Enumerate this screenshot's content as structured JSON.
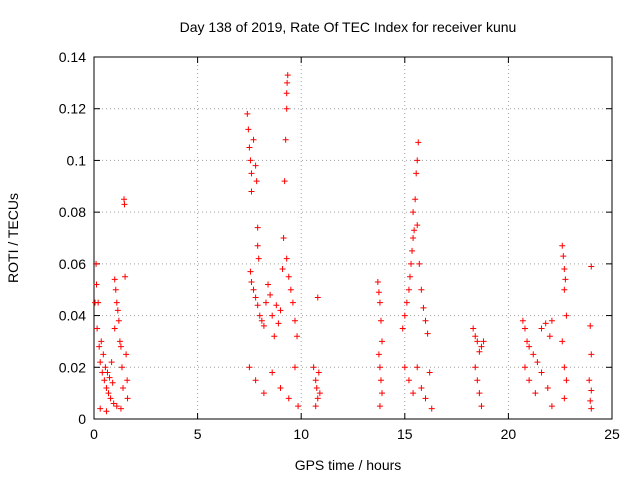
{
  "chart_data": {
    "type": "scatter",
    "title": "Day 138 of 2019, Rate Of TEC Index for receiver kunu",
    "xlabel": "GPS time / hours",
    "ylabel": "ROTI / TECUs",
    "xlim": [
      0,
      25
    ],
    "ylim": [
      0,
      0.14
    ],
    "xticks": [
      0,
      5,
      10,
      15,
      20,
      25
    ],
    "xtick_labels": [
      "0",
      "5",
      "10",
      "15",
      "20",
      "25"
    ],
    "yticks": [
      0,
      0.02,
      0.04,
      0.06,
      0.08,
      0.1,
      0.12,
      0.14
    ],
    "ytick_labels": [
      "0",
      "0.02",
      "0.04",
      "0.06",
      "0.08",
      "0.1",
      "0.12",
      "0.14"
    ],
    "grid": true,
    "marker": "plus",
    "color": "#ff0000",
    "series": [
      {
        "points": [
          [
            0.05,
            0.045
          ],
          [
            0.1,
            0.06
          ],
          [
            0.12,
            0.052
          ],
          [
            0.15,
            0.035
          ],
          [
            0.2,
            0.045
          ],
          [
            0.25,
            0.028
          ],
          [
            0.3,
            0.022
          ],
          [
            0.35,
            0.03
          ],
          [
            0.4,
            0.018
          ],
          [
            0.45,
            0.025
          ],
          [
            0.5,
            0.015
          ],
          [
            0.55,
            0.02
          ],
          [
            0.6,
            0.012
          ],
          [
            0.65,
            0.018
          ],
          [
            0.7,
            0.01
          ],
          [
            0.75,
            0.016
          ],
          [
            0.8,
            0.008
          ],
          [
            0.85,
            0.022
          ],
          [
            0.9,
            0.014
          ],
          [
            0.95,
            0.006
          ],
          [
            1.0,
            0.035
          ],
          [
            1.0,
            0.054
          ],
          [
            1.05,
            0.05
          ],
          [
            1.1,
            0.045
          ],
          [
            1.15,
            0.042
          ],
          [
            1.2,
            0.038
          ],
          [
            1.25,
            0.03
          ],
          [
            1.3,
            0.028
          ],
          [
            1.35,
            0.02
          ],
          [
            1.4,
            0.012
          ],
          [
            1.45,
            0.085
          ],
          [
            1.47,
            0.083
          ],
          [
            1.5,
            0.055
          ],
          [
            1.55,
            0.025
          ],
          [
            1.6,
            0.015
          ],
          [
            1.62,
            0.008
          ],
          [
            0.3,
            0.004
          ],
          [
            0.6,
            0.003
          ],
          [
            1.1,
            0.005
          ],
          [
            1.3,
            0.004
          ],
          [
            7.4,
            0.118
          ],
          [
            7.45,
            0.112
          ],
          [
            7.5,
            0.105
          ],
          [
            7.55,
            0.1
          ],
          [
            7.6,
            0.095
          ],
          [
            7.6,
            0.088
          ],
          [
            7.7,
            0.108
          ],
          [
            7.8,
            0.098
          ],
          [
            7.85,
            0.092
          ],
          [
            7.9,
            0.074
          ],
          [
            7.9,
            0.067
          ],
          [
            7.95,
            0.062
          ],
          [
            7.55,
            0.057
          ],
          [
            7.6,
            0.053
          ],
          [
            7.7,
            0.05
          ],
          [
            7.8,
            0.047
          ],
          [
            7.9,
            0.044
          ],
          [
            8.0,
            0.04
          ],
          [
            8.1,
            0.038
          ],
          [
            8.2,
            0.036
          ],
          [
            8.3,
            0.045
          ],
          [
            8.4,
            0.052
          ],
          [
            8.5,
            0.048
          ],
          [
            8.6,
            0.04
          ],
          [
            8.7,
            0.032
          ],
          [
            8.8,
            0.044
          ],
          [
            8.9,
            0.037
          ],
          [
            9.0,
            0.042
          ],
          [
            9.1,
            0.058
          ],
          [
            9.15,
            0.07
          ],
          [
            9.2,
            0.092
          ],
          [
            9.25,
            0.108
          ],
          [
            9.3,
            0.12
          ],
          [
            9.3,
            0.126
          ],
          [
            9.32,
            0.13
          ],
          [
            9.35,
            0.133
          ],
          [
            9.3,
            0.062
          ],
          [
            9.4,
            0.055
          ],
          [
            9.5,
            0.05
          ],
          [
            9.6,
            0.045
          ],
          [
            9.7,
            0.038
          ],
          [
            9.8,
            0.032
          ],
          [
            7.5,
            0.02
          ],
          [
            7.8,
            0.015
          ],
          [
            8.2,
            0.01
          ],
          [
            8.6,
            0.018
          ],
          [
            9.0,
            0.012
          ],
          [
            9.4,
            0.008
          ],
          [
            9.7,
            0.02
          ],
          [
            9.85,
            0.005
          ],
          [
            10.8,
            0.047
          ],
          [
            10.6,
            0.02
          ],
          [
            10.7,
            0.015
          ],
          [
            10.75,
            0.012
          ],
          [
            10.8,
            0.008
          ],
          [
            10.85,
            0.018
          ],
          [
            10.9,
            0.01
          ],
          [
            10.7,
            0.005
          ],
          [
            13.7,
            0.053
          ],
          [
            13.75,
            0.049
          ],
          [
            13.8,
            0.045
          ],
          [
            13.85,
            0.038
          ],
          [
            13.9,
            0.03
          ],
          [
            13.75,
            0.025
          ],
          [
            13.8,
            0.02
          ],
          [
            13.85,
            0.015
          ],
          [
            13.9,
            0.01
          ],
          [
            13.8,
            0.005
          ],
          [
            14.9,
            0.035
          ],
          [
            15.0,
            0.04
          ],
          [
            15.1,
            0.045
          ],
          [
            15.2,
            0.05
          ],
          [
            15.25,
            0.055
          ],
          [
            15.3,
            0.06
          ],
          [
            15.35,
            0.065
          ],
          [
            15.4,
            0.07
          ],
          [
            15.45,
            0.073
          ],
          [
            15.4,
            0.08
          ],
          [
            15.5,
            0.085
          ],
          [
            15.55,
            0.095
          ],
          [
            15.6,
            0.1
          ],
          [
            15.65,
            0.107
          ],
          [
            15.6,
            0.075
          ],
          [
            15.7,
            0.06
          ],
          [
            15.8,
            0.05
          ],
          [
            15.9,
            0.043
          ],
          [
            16.0,
            0.038
          ],
          [
            16.1,
            0.033
          ],
          [
            15.0,
            0.02
          ],
          [
            15.2,
            0.015
          ],
          [
            15.4,
            0.01
          ],
          [
            15.6,
            0.02
          ],
          [
            15.8,
            0.012
          ],
          [
            16.0,
            0.008
          ],
          [
            16.2,
            0.018
          ],
          [
            16.3,
            0.004
          ],
          [
            18.3,
            0.035
          ],
          [
            18.4,
            0.032
          ],
          [
            18.5,
            0.03
          ],
          [
            18.6,
            0.026
          ],
          [
            18.7,
            0.028
          ],
          [
            18.8,
            0.03
          ],
          [
            18.4,
            0.02
          ],
          [
            18.5,
            0.015
          ],
          [
            18.6,
            0.01
          ],
          [
            18.7,
            0.005
          ],
          [
            20.7,
            0.038
          ],
          [
            20.8,
            0.035
          ],
          [
            20.9,
            0.03
          ],
          [
            21.0,
            0.028
          ],
          [
            21.2,
            0.025
          ],
          [
            21.4,
            0.022
          ],
          [
            21.6,
            0.035
          ],
          [
            21.8,
            0.037
          ],
          [
            22.0,
            0.032
          ],
          [
            22.1,
            0.038
          ],
          [
            20.8,
            0.02
          ],
          [
            21.0,
            0.015
          ],
          [
            21.3,
            0.01
          ],
          [
            21.6,
            0.018
          ],
          [
            21.9,
            0.012
          ],
          [
            22.1,
            0.005
          ],
          [
            22.6,
            0.067
          ],
          [
            22.65,
            0.063
          ],
          [
            22.7,
            0.058
          ],
          [
            22.75,
            0.054
          ],
          [
            22.7,
            0.05
          ],
          [
            22.8,
            0.04
          ],
          [
            22.6,
            0.03
          ],
          [
            22.7,
            0.02
          ],
          [
            22.8,
            0.015
          ],
          [
            22.7,
            0.008
          ],
          [
            24.0,
            0.059
          ],
          [
            23.95,
            0.036
          ],
          [
            24.0,
            0.025
          ],
          [
            23.9,
            0.015
          ],
          [
            24.0,
            0.011
          ],
          [
            23.95,
            0.007
          ],
          [
            24.0,
            0.004
          ]
        ]
      }
    ]
  }
}
